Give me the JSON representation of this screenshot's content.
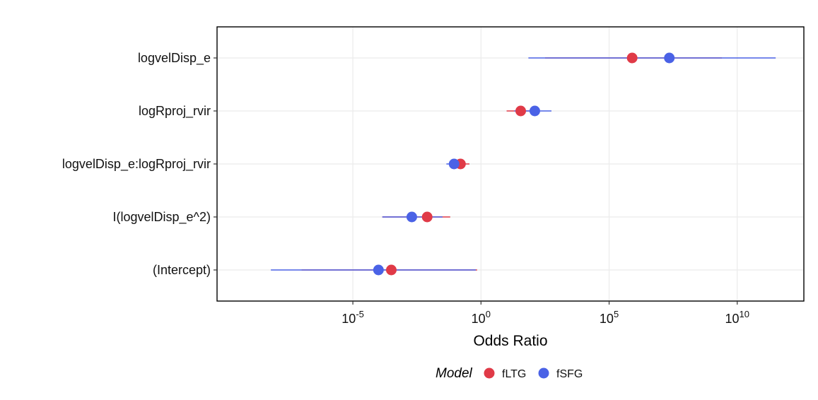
{
  "chart_data": {
    "type": "forest",
    "xlabel": "Odds Ratio",
    "xscale": "log10",
    "xlim_log10": [
      -10.3,
      12.6
    ],
    "xticks": [
      {
        "base": "10",
        "exp": "-5",
        "log10": -5
      },
      {
        "base": "10",
        "exp": "0",
        "log10": 0
      },
      {
        "base": "10",
        "exp": "5",
        "log10": 5
      },
      {
        "base": "10",
        "exp": "10",
        "log10": 10
      }
    ],
    "terms": [
      "logvelDisp_e",
      "logRproj_rvir",
      "logvelDisp_e:logRproj_rvir",
      "I(logvelDisp_e^2)",
      "(Intercept)"
    ],
    "legend": {
      "title": "Model",
      "position": "bottom"
    },
    "grid": true,
    "series": [
      {
        "name": "fLTG",
        "color": "#E03A47",
        "points": [
          {
            "term": "logvelDisp_e",
            "estimate_log10": 5.9,
            "lower_log10": 2.5,
            "upper_log10": 9.4
          },
          {
            "term": "logRproj_rvir",
            "estimate_log10": 1.55,
            "lower_log10": 1.0,
            "upper_log10": 2.1
          },
          {
            "term": "logvelDisp_e:logRproj_rvir",
            "estimate_log10": -0.8,
            "lower_log10": -1.05,
            "upper_log10": -0.45
          },
          {
            "term": "I(logvelDisp_e^2)",
            "estimate_log10": -2.1,
            "lower_log10": -3.85,
            "upper_log10": -1.2
          },
          {
            "term": "(Intercept)",
            "estimate_log10": -3.5,
            "lower_log10": -7.0,
            "upper_log10": -0.15
          }
        ]
      },
      {
        "name": "fSFG",
        "color": "#4A62E6",
        "points": [
          {
            "term": "logvelDisp_e",
            "estimate_log10": 7.35,
            "lower_log10": 1.85,
            "upper_log10": 11.5
          },
          {
            "term": "logRproj_rvir",
            "estimate_log10": 2.1,
            "lower_log10": 1.3,
            "upper_log10": 2.75
          },
          {
            "term": "logvelDisp_e:logRproj_rvir",
            "estimate_log10": -1.05,
            "lower_log10": -1.35,
            "upper_log10": -0.8
          },
          {
            "term": "I(logvelDisp_e^2)",
            "estimate_log10": -2.7,
            "lower_log10": -3.85,
            "upper_log10": -1.5
          },
          {
            "term": "(Intercept)",
            "estimate_log10": -4.0,
            "lower_log10": -8.2,
            "upper_log10": -0.2
          }
        ]
      }
    ]
  }
}
